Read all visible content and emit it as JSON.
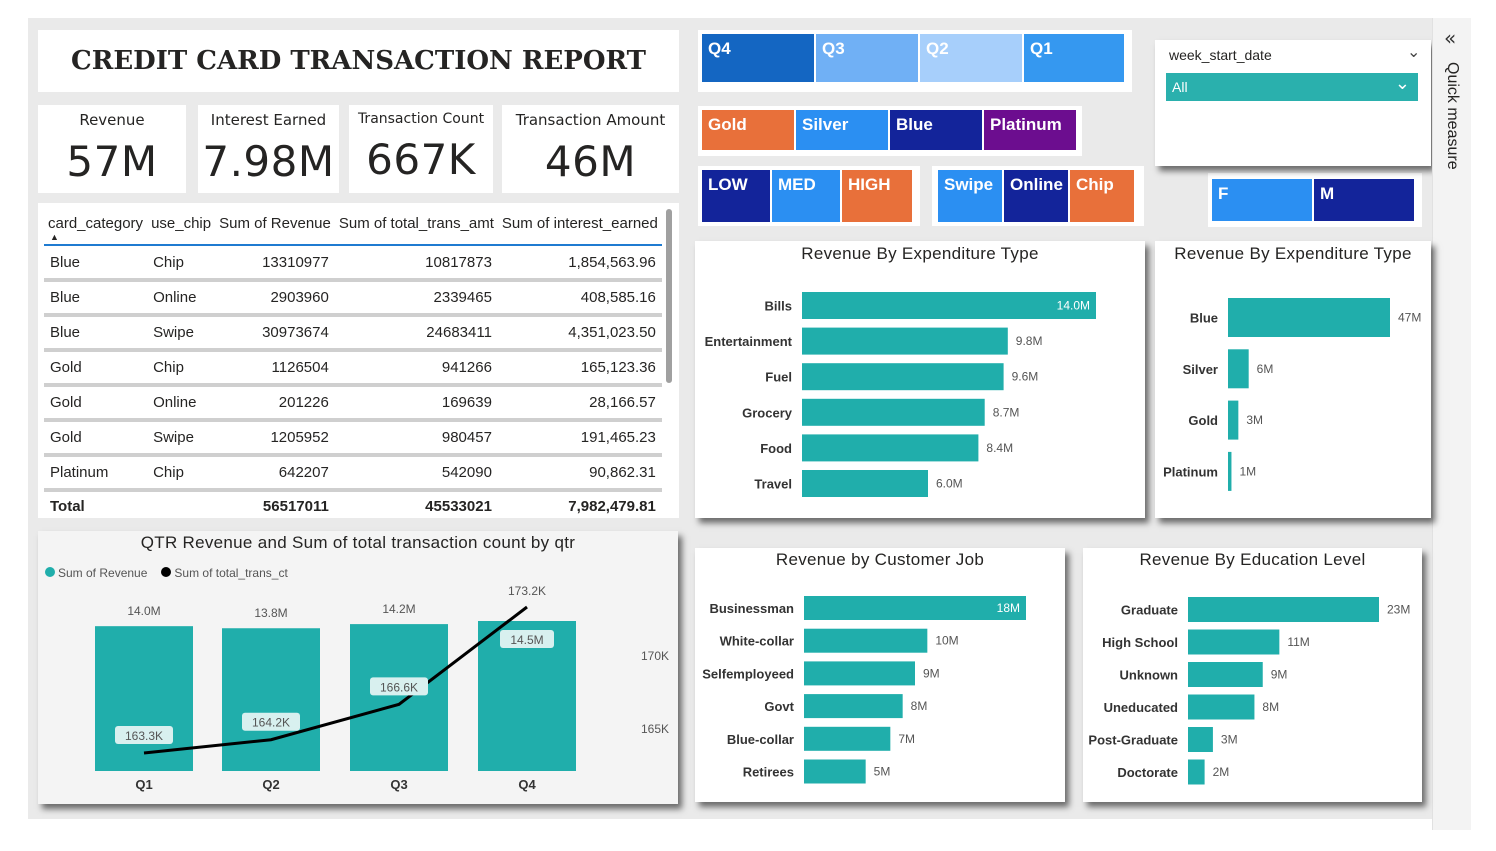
{
  "report_title": "CREDIT CARD TRANSACTION REPORT",
  "kpis": [
    {
      "label": "Revenue",
      "value": "57M"
    },
    {
      "label": "Interest Earned",
      "value": "7.98M"
    },
    {
      "label": "Transaction Count",
      "value": "667K"
    },
    {
      "label": "Transaction Amount",
      "value": "46M"
    }
  ],
  "slicers": {
    "quarters": [
      {
        "label": "Q4",
        "color": "#1466c2"
      },
      {
        "label": "Q3",
        "color": "#70b0f5"
      },
      {
        "label": "Q2",
        "color": "#a7cffb"
      },
      {
        "label": "Q1",
        "color": "#3598f0"
      }
    ],
    "card_category": [
      {
        "label": "Gold",
        "color": "#e8703a"
      },
      {
        "label": "Silver",
        "color": "#2b8ff2"
      },
      {
        "label": "Blue",
        "color": "#13249a"
      },
      {
        "label": "Platinum",
        "color": "#6c0d8f"
      }
    ],
    "income": [
      {
        "label": "LOW",
        "color": "#13249a"
      },
      {
        "label": "MED",
        "color": "#2b8ff2"
      },
      {
        "label": "HIGH",
        "color": "#e8703a"
      }
    ],
    "use_chip": [
      {
        "label": "Swipe",
        "color": "#2b8ff2"
      },
      {
        "label": "Online",
        "color": "#13249a"
      },
      {
        "label": "Chip",
        "color": "#e8703a"
      }
    ],
    "gender": [
      {
        "label": "F",
        "color": "#2b8ff2"
      },
      {
        "label": "M",
        "color": "#13249a"
      }
    ],
    "week_filter": {
      "label": "week_start_date",
      "value": "All",
      "accent": "#2ab0ad"
    }
  },
  "quick_measure": {
    "label": "Quick measure"
  },
  "matrix": {
    "headers": [
      "card_category",
      "use_chip",
      "Sum of Revenue",
      "Sum of total_trans_amt",
      "Sum of interest_earned"
    ],
    "rows": [
      [
        "Blue",
        "Chip",
        "13310977",
        "10817873",
        "1,854,563.96"
      ],
      [
        "Blue",
        "Online",
        "2903960",
        "2339465",
        "408,585.16"
      ],
      [
        "Blue",
        "Swipe",
        "30973674",
        "24683411",
        "4,351,023.50"
      ],
      [
        "Gold",
        "Chip",
        "1126504",
        "941266",
        "165,123.36"
      ],
      [
        "Gold",
        "Online",
        "201226",
        "169639",
        "28,166.57"
      ],
      [
        "Gold",
        "Swipe",
        "1205952",
        "980457",
        "191,465.23"
      ],
      [
        "Platinum",
        "Chip",
        "642207",
        "542090",
        "90,862.31"
      ]
    ],
    "total": [
      "Total",
      "",
      "56517011",
      "45533021",
      "7,982,479.81"
    ]
  },
  "charts": {
    "qtr": {
      "title": "QTR Revenue and Sum of total transaction count by qtr",
      "legend": [
        "Sum of Revenue",
        "Sum of total_trans_ct"
      ]
    },
    "expenditure": {
      "title": "Revenue By Expenditure Type"
    },
    "card": {
      "title": "Revenue By Expenditure Type"
    },
    "job": {
      "title": "Revenue by Customer Job"
    },
    "education": {
      "title": "Revenue By Education Level"
    }
  },
  "colors": {
    "bar": "#20aeab",
    "line": "#000000"
  },
  "chart_data": [
    {
      "type": "bar+line",
      "title": "QTR Revenue and Sum of total transaction count by qtr",
      "categories": [
        "Q1",
        "Q2",
        "Q3",
        "Q4"
      ],
      "series": [
        {
          "name": "Sum of Revenue",
          "type": "bar",
          "values": [
            14.0,
            13.8,
            14.2,
            14.5
          ],
          "labels": [
            "14.0M",
            "13.8M",
            "14.2M",
            "14.5M"
          ]
        },
        {
          "name": "Sum of total_trans_ct",
          "type": "line",
          "values": [
            163.3,
            164.2,
            166.6,
            173.2
          ],
          "labels": [
            "163.3K",
            "164.2K",
            "166.6K",
            "173.2K"
          ]
        }
      ],
      "secondary_axis_ticks": [
        "170K",
        "165K"
      ],
      "secondary_ylim": [
        163.3,
        173.2
      ],
      "legend_position": "top-left"
    },
    {
      "type": "bar",
      "orientation": "horizontal",
      "title": "Revenue By Expenditure Type",
      "categories": [
        "Bills",
        "Entertainment",
        "Fuel",
        "Grocery",
        "Food",
        "Travel"
      ],
      "values": [
        14.0,
        9.8,
        9.6,
        8.7,
        8.4,
        6.0
      ],
      "labels": [
        "14.0M",
        "9.8M",
        "9.6M",
        "8.7M",
        "8.4M",
        "6.0M"
      ]
    },
    {
      "type": "bar",
      "orientation": "horizontal",
      "title": "Revenue By Expenditure Type",
      "categories": [
        "Blue",
        "Silver",
        "Gold",
        "Platinum"
      ],
      "values": [
        47,
        6,
        3,
        1
      ],
      "labels": [
        "47M",
        "6M",
        "3M",
        "1M"
      ]
    },
    {
      "type": "bar",
      "orientation": "horizontal",
      "title": "Revenue by Customer Job",
      "categories": [
        "Businessman",
        "White-collar",
        "Selfemployeed",
        "Govt",
        "Blue-collar",
        "Retirees"
      ],
      "values": [
        18,
        10,
        9,
        8,
        7,
        5
      ],
      "labels": [
        "18M",
        "10M",
        "9M",
        "8M",
        "7M",
        "5M"
      ]
    },
    {
      "type": "bar",
      "orientation": "horizontal",
      "title": "Revenue By Education Level",
      "categories": [
        "Graduate",
        "High School",
        "Unknown",
        "Uneducated",
        "Post-Graduate",
        "Doctorate"
      ],
      "values": [
        23,
        11,
        9,
        8,
        3,
        2
      ],
      "labels": [
        "23M",
        "11M",
        "9M",
        "8M",
        "3M",
        "2M"
      ]
    }
  ]
}
